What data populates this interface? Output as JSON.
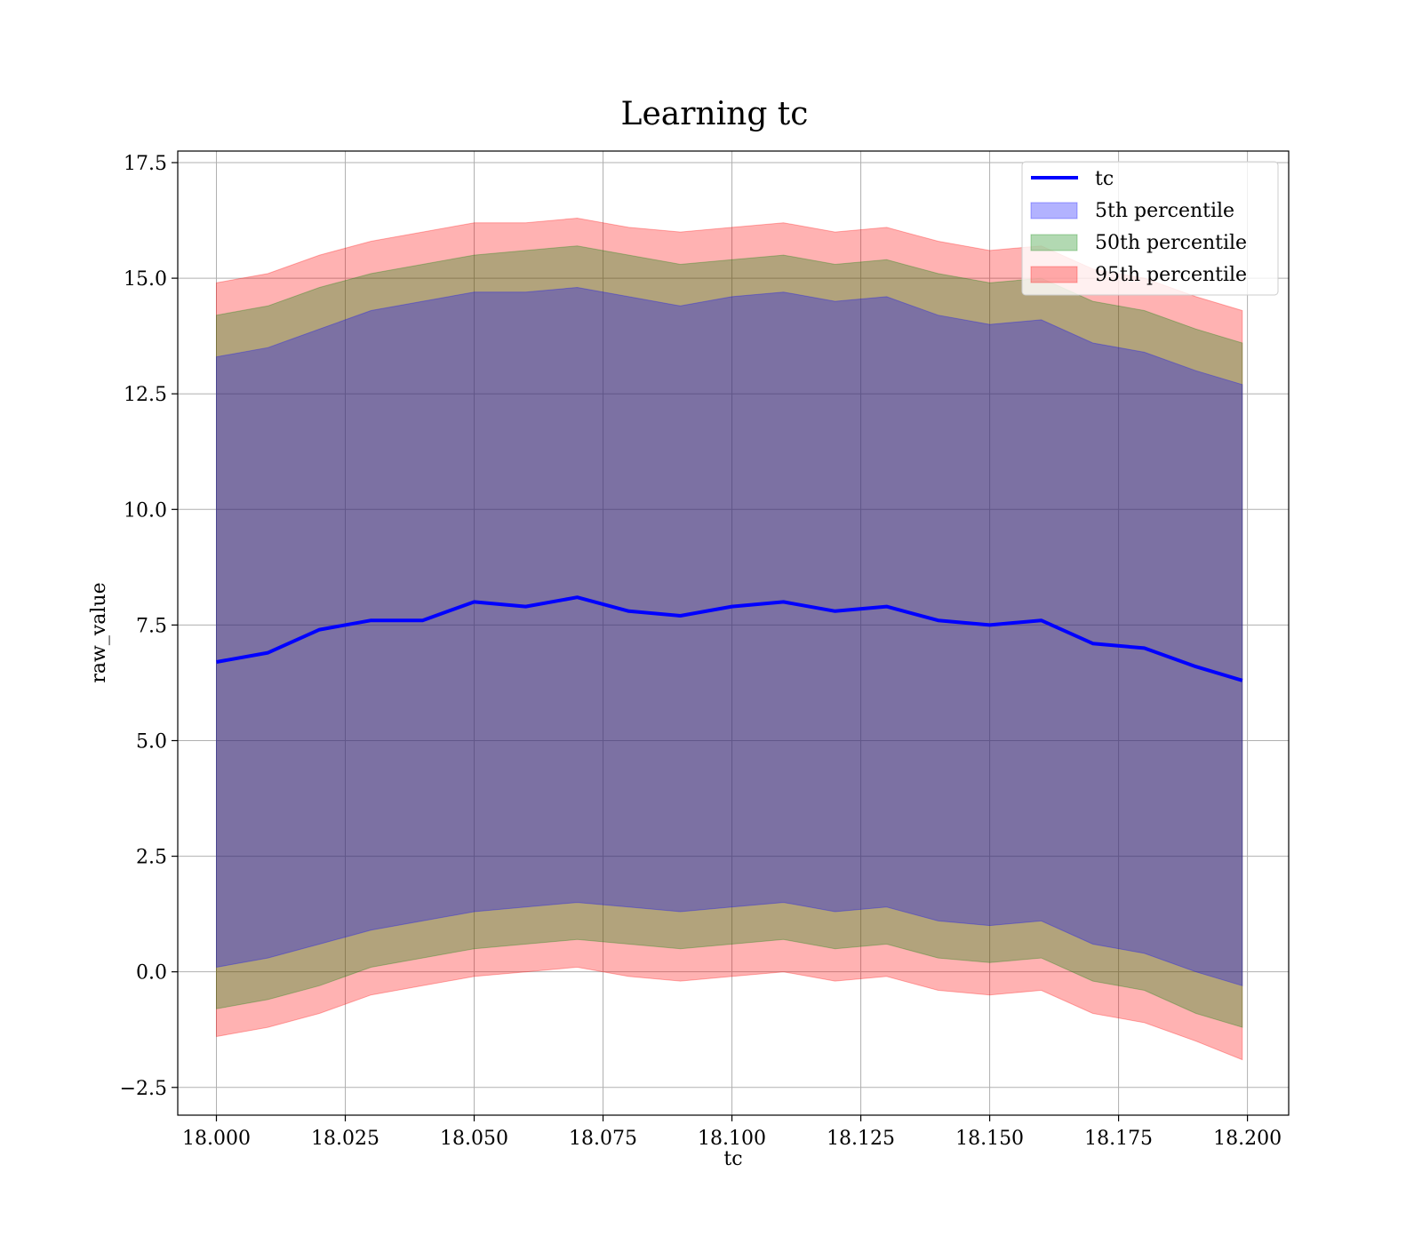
{
  "chart_data": {
    "type": "area",
    "title": "Learning tc",
    "xlabel": "tc",
    "ylabel": "raw_value",
    "xlim": [
      17.9925,
      18.208
    ],
    "ylim": [
      -3.1,
      17.75
    ],
    "x_ticks": [
      18.0,
      18.025,
      18.05,
      18.075,
      18.1,
      18.125,
      18.15,
      18.175,
      18.2
    ],
    "x_tick_labels": [
      "18.000",
      "18.025",
      "18.050",
      "18.075",
      "18.100",
      "18.125",
      "18.150",
      "18.175",
      "18.200"
    ],
    "y_ticks": [
      -2.5,
      0.0,
      2.5,
      5.0,
      7.5,
      10.0,
      12.5,
      15.0,
      17.5
    ],
    "y_tick_labels": [
      "−2.5",
      "0.0",
      "2.5",
      "5.0",
      "7.5",
      "10.0",
      "12.5",
      "15.0",
      "17.5"
    ],
    "grid": true,
    "legend_position": "top-right",
    "x": [
      18.0,
      18.01,
      18.02,
      18.03,
      18.04,
      18.05,
      18.06,
      18.07,
      18.08,
      18.09,
      18.1,
      18.11,
      18.12,
      18.13,
      18.14,
      18.15,
      18.16,
      18.17,
      18.18,
      18.19,
      18.199
    ],
    "series": [
      {
        "name": "tc",
        "kind": "line",
        "color": "#0000ff",
        "values": [
          6.7,
          6.9,
          7.4,
          7.6,
          7.6,
          8.0,
          7.9,
          8.1,
          7.8,
          7.7,
          7.9,
          8.0,
          7.8,
          7.9,
          7.6,
          7.5,
          7.6,
          7.1,
          7.0,
          6.6,
          6.3
        ]
      },
      {
        "name": "5th percentile",
        "kind": "band",
        "color": "#0000ff",
        "lower": [
          0.1,
          0.3,
          0.6,
          0.9,
          1.1,
          1.3,
          1.4,
          1.5,
          1.4,
          1.3,
          1.4,
          1.5,
          1.3,
          1.4,
          1.1,
          1.0,
          1.1,
          0.6,
          0.4,
          0.0,
          -0.3
        ],
        "upper": [
          13.3,
          13.5,
          13.9,
          14.3,
          14.5,
          14.7,
          14.7,
          14.8,
          14.6,
          14.4,
          14.6,
          14.7,
          14.5,
          14.6,
          14.2,
          14.0,
          14.1,
          13.6,
          13.4,
          13.0,
          12.7
        ]
      },
      {
        "name": "50th percentile",
        "kind": "band",
        "color": "#008000",
        "lower": [
          -0.8,
          -0.6,
          -0.3,
          0.1,
          0.3,
          0.5,
          0.6,
          0.7,
          0.6,
          0.5,
          0.6,
          0.7,
          0.5,
          0.6,
          0.3,
          0.2,
          0.3,
          -0.2,
          -0.4,
          -0.9,
          -1.2
        ],
        "upper": [
          14.2,
          14.4,
          14.8,
          15.1,
          15.3,
          15.5,
          15.6,
          15.7,
          15.5,
          15.3,
          15.4,
          15.5,
          15.3,
          15.4,
          15.1,
          14.9,
          15.0,
          14.5,
          14.3,
          13.9,
          13.6
        ]
      },
      {
        "name": "95th percentile",
        "kind": "band",
        "color": "#ff0000",
        "lower": [
          -1.4,
          -1.2,
          -0.9,
          -0.5,
          -0.3,
          -0.1,
          0.0,
          0.1,
          -0.1,
          -0.2,
          -0.1,
          0.0,
          -0.2,
          -0.1,
          -0.4,
          -0.5,
          -0.4,
          -0.9,
          -1.1,
          -1.5,
          -1.9
        ],
        "upper": [
          14.9,
          15.1,
          15.5,
          15.8,
          16.0,
          16.2,
          16.2,
          16.3,
          16.1,
          16.0,
          16.1,
          16.2,
          16.0,
          16.1,
          15.8,
          15.6,
          15.7,
          15.2,
          15.0,
          14.6,
          14.3
        ]
      }
    ]
  }
}
